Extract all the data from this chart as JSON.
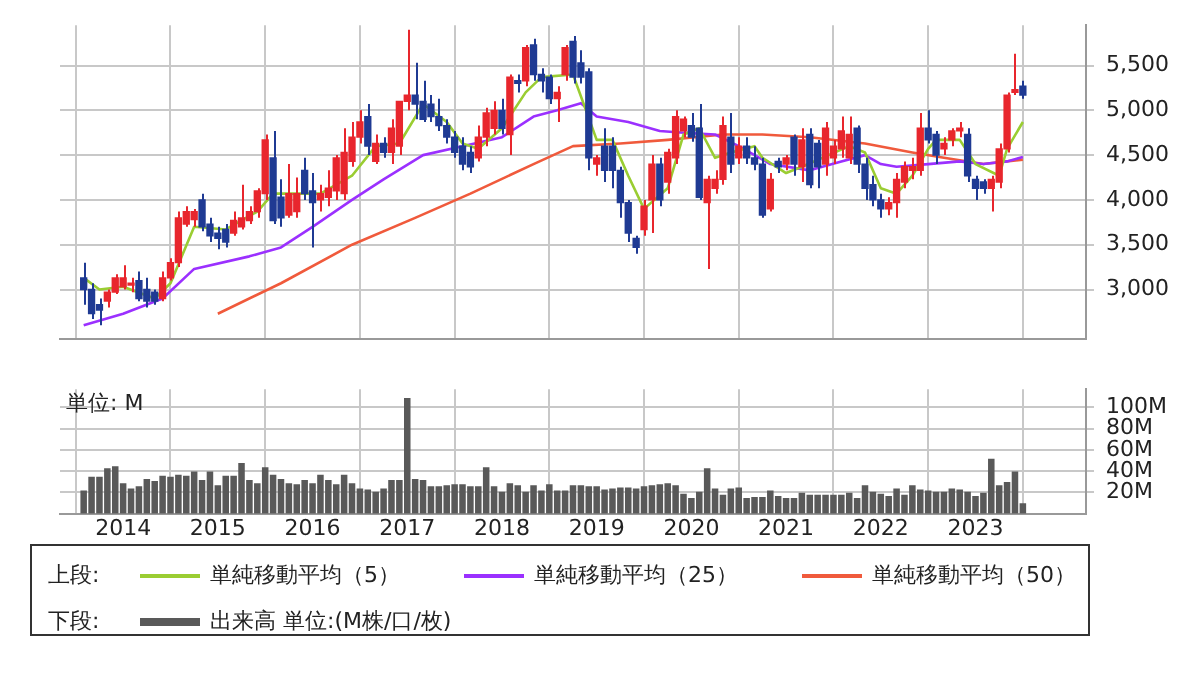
{
  "chart_data": [
    {
      "type": "candlestick",
      "legend_title": "上段:",
      "legend": "bottom",
      "grid": true,
      "tick_labels": "y",
      "marker": "none",
      "x": [
        "2013-08",
        "2013-09",
        "2013-10",
        "2013-11",
        "2013-12",
        "2014-01",
        "2014-02",
        "2014-03",
        "2014-04",
        "2014-05",
        "2014-06",
        "2014-07",
        "2014-08",
        "2014-09",
        "2014-10",
        "2014-11",
        "2014-12",
        "2015-01",
        "2015-02",
        "2015-03",
        "2015-04",
        "2015-05",
        "2015-06",
        "2015-07",
        "2015-08",
        "2015-09",
        "2015-10",
        "2015-11",
        "2015-12",
        "2016-01",
        "2016-02",
        "2016-03",
        "2016-04",
        "2016-05",
        "2016-06",
        "2016-07",
        "2016-08",
        "2016-09",
        "2016-10",
        "2016-11",
        "2016-12",
        "2017-01",
        "2017-02",
        "2017-03",
        "2017-04",
        "2017-05",
        "2017-06",
        "2017-07",
        "2017-08",
        "2017-09",
        "2017-10",
        "2017-11",
        "2017-12",
        "2018-01",
        "2018-02",
        "2018-03",
        "2018-04",
        "2018-05",
        "2018-06",
        "2018-07",
        "2018-08",
        "2018-09",
        "2018-10",
        "2018-11",
        "2018-12",
        "2019-01",
        "2019-02",
        "2019-03",
        "2019-04",
        "2019-05",
        "2019-06",
        "2019-07",
        "2019-08",
        "2019-09",
        "2019-10",
        "2019-11",
        "2019-12",
        "2020-01",
        "2020-02",
        "2020-03",
        "2020-04",
        "2020-05",
        "2020-06",
        "2020-07",
        "2020-08",
        "2020-09",
        "2020-10",
        "2020-11",
        "2020-12",
        "2021-01",
        "2021-02",
        "2021-03",
        "2021-04",
        "2021-05",
        "2021-06",
        "2021-07",
        "2021-08",
        "2021-09",
        "2021-10",
        "2021-11",
        "2021-12",
        "2022-01",
        "2022-02",
        "2022-03",
        "2022-04",
        "2022-05",
        "2022-06",
        "2022-07",
        "2022-08",
        "2022-09",
        "2022-10",
        "2022-11",
        "2022-12",
        "2023-01",
        "2023-02",
        "2023-03",
        "2023-04",
        "2023-05",
        "2023-06",
        "2023-07"
      ],
      "ohlc": [
        [
          3130,
          3300,
          2830,
          3000
        ],
        [
          3000,
          3070,
          2670,
          2730
        ],
        [
          2830,
          2900,
          2600,
          2770
        ],
        [
          2870,
          3000,
          2800,
          2970
        ],
        [
          2970,
          3170,
          2950,
          3130
        ],
        [
          3030,
          3270,
          3000,
          3130
        ],
        [
          3050,
          3130,
          2970,
          3070
        ],
        [
          3100,
          3200,
          2870,
          2900
        ],
        [
          3000,
          3130,
          2800,
          2870
        ],
        [
          2970,
          3000,
          2830,
          2870
        ],
        [
          2900,
          3200,
          2870,
          3130
        ],
        [
          3130,
          3350,
          3100,
          3300
        ],
        [
          3300,
          3870,
          3250,
          3800
        ],
        [
          3730,
          3930,
          3700,
          3870
        ],
        [
          3780,
          3900,
          3700,
          3870
        ],
        [
          4000,
          4070,
          3650,
          3700
        ],
        [
          3730,
          3800,
          3530,
          3600
        ],
        [
          3630,
          3700,
          3450,
          3570
        ],
        [
          3670,
          3730,
          3470,
          3530
        ],
        [
          3630,
          3870,
          3600,
          3770
        ],
        [
          3700,
          4170,
          3670,
          3800
        ],
        [
          3770,
          3930,
          3730,
          3870
        ],
        [
          3870,
          4130,
          3800,
          4100
        ],
        [
          4070,
          4730,
          4000,
          4670
        ],
        [
          4470,
          4770,
          3730,
          3770
        ],
        [
          4030,
          4230,
          3700,
          3800
        ],
        [
          3830,
          4400,
          3800,
          4070
        ],
        [
          3870,
          4250,
          3800,
          4070
        ],
        [
          4330,
          4470,
          4000,
          4070
        ],
        [
          4100,
          4300,
          3470,
          3970
        ],
        [
          4000,
          4170,
          3870,
          4070
        ],
        [
          4030,
          4330,
          3930,
          4130
        ],
        [
          4100,
          4500,
          4000,
          4470
        ],
        [
          4070,
          4800,
          4000,
          4530
        ],
        [
          4430,
          4870,
          4370,
          4700
        ],
        [
          4700,
          5000,
          4630,
          4870
        ],
        [
          4930,
          5070,
          4500,
          4600
        ],
        [
          4430,
          4730,
          4400,
          4630
        ],
        [
          4630,
          4700,
          4470,
          4530
        ],
        [
          4530,
          4900,
          4400,
          4800
        ],
        [
          4600,
          5100,
          4500,
          5100
        ],
        [
          5100,
          5900,
          5000,
          5170
        ],
        [
          5170,
          5530,
          4900,
          5070
        ],
        [
          5100,
          5330,
          4870,
          4900
        ],
        [
          5070,
          5170,
          4870,
          4930
        ],
        [
          4930,
          5130,
          4770,
          4830
        ],
        [
          4830,
          4900,
          4630,
          4700
        ],
        [
          4700,
          4770,
          4470,
          4530
        ],
        [
          4600,
          4700,
          4330,
          4400
        ],
        [
          4530,
          4600,
          4300,
          4370
        ],
        [
          4470,
          4830,
          4430,
          4700
        ],
        [
          4700,
          5030,
          4600,
          4970
        ],
        [
          4800,
          5100,
          4730,
          5000
        ],
        [
          5000,
          5130,
          4730,
          4800
        ],
        [
          4730,
          5400,
          4500,
          5370
        ],
        [
          5330,
          5400,
          5200,
          5300
        ],
        [
          5330,
          5730,
          5270,
          5700
        ],
        [
          5730,
          5800,
          5330,
          5400
        ],
        [
          5400,
          5470,
          5200,
          5330
        ],
        [
          5370,
          5400,
          5070,
          5130
        ],
        [
          5130,
          5270,
          4870,
          5200
        ],
        [
          5400,
          5730,
          5330,
          5700
        ],
        [
          5770,
          5830,
          5300,
          5370
        ],
        [
          5530,
          5670,
          5300,
          5370
        ],
        [
          5430,
          5470,
          4330,
          4470
        ],
        [
          4400,
          4500,
          4270,
          4470
        ],
        [
          4600,
          4800,
          4200,
          4330
        ],
        [
          4600,
          4700,
          4130,
          4330
        ],
        [
          4330,
          4370,
          3800,
          3970
        ],
        [
          3970,
          4000,
          3530,
          3630
        ],
        [
          3570,
          3600,
          3400,
          3470
        ],
        [
          3670,
          4000,
          3600,
          3930
        ],
        [
          4000,
          4500,
          3630,
          4400
        ],
        [
          4400,
          4470,
          3930,
          4000
        ],
        [
          4200,
          4570,
          4070,
          4530
        ],
        [
          4470,
          5000,
          4400,
          4930
        ],
        [
          4770,
          4930,
          4700,
          4900
        ],
        [
          4830,
          4970,
          4650,
          4700
        ],
        [
          4800,
          5070,
          4000,
          4030
        ],
        [
          3970,
          4270,
          3230,
          4230
        ],
        [
          4130,
          4330,
          4070,
          4230
        ],
        [
          4230,
          4930,
          4170,
          4830
        ],
        [
          4700,
          4970,
          4300,
          4400
        ],
        [
          4470,
          4700,
          4400,
          4600
        ],
        [
          4600,
          4700,
          4400,
          4470
        ],
        [
          4470,
          4600,
          4330,
          4400
        ],
        [
          4400,
          4470,
          3800,
          3830
        ],
        [
          3900,
          4300,
          3870,
          4230
        ],
        [
          4430,
          4470,
          4300,
          4370
        ],
        [
          4400,
          4500,
          4330,
          4470
        ],
        [
          4700,
          4730,
          4270,
          4400
        ],
        [
          4370,
          4800,
          4200,
          4670
        ],
        [
          4730,
          4800,
          4130,
          4170
        ],
        [
          4630,
          4670,
          4130,
          4370
        ],
        [
          4400,
          4870,
          4270,
          4800
        ],
        [
          4470,
          4670,
          4400,
          4600
        ],
        [
          4570,
          4930,
          4470,
          4770
        ],
        [
          4470,
          4930,
          4400,
          4730
        ],
        [
          4800,
          4830,
          4300,
          4400
        ],
        [
          4400,
          4470,
          4000,
          4130
        ],
        [
          4170,
          4270,
          3930,
          4000
        ],
        [
          4000,
          4070,
          3800,
          3900
        ],
        [
          3900,
          4030,
          3830,
          3970
        ],
        [
          3970,
          4300,
          3800,
          4230
        ],
        [
          4200,
          4430,
          4130,
          4370
        ],
        [
          4330,
          4470,
          4230,
          4370
        ],
        [
          4330,
          4970,
          4270,
          4800
        ],
        [
          4800,
          5000,
          4630,
          4670
        ],
        [
          4730,
          4770,
          4400,
          4500
        ],
        [
          4570,
          4700,
          4500,
          4630
        ],
        [
          4670,
          4800,
          4600,
          4770
        ],
        [
          4770,
          4870,
          4700,
          4800
        ],
        [
          4730,
          4800,
          4200,
          4270
        ],
        [
          4230,
          4270,
          4000,
          4130
        ],
        [
          4200,
          4230,
          4070,
          4130
        ],
        [
          4130,
          4270,
          3870,
          4230
        ],
        [
          4200,
          4630,
          4130,
          4570
        ],
        [
          4570,
          5200,
          4530,
          5170
        ],
        [
          5200,
          5630,
          5170,
          5230
        ],
        [
          5270,
          5330,
          5130,
          5170
        ]
      ],
      "colors": [
        "#1f3a93",
        "#1f3a93",
        "#1f3a93",
        "#e8262d",
        "#e8262d",
        "#e8262d",
        "#e8262d",
        "#1f3a93",
        "#1f3a93",
        "#1f3a93",
        "#e8262d",
        "#e8262d",
        "#e8262d",
        "#e8262d",
        "#e8262d",
        "#1f3a93",
        "#1f3a93",
        "#1f3a93",
        "#1f3a93",
        "#e8262d",
        "#e8262d",
        "#e8262d",
        "#e8262d",
        "#e8262d",
        "#1f3a93",
        "#1f3a93",
        "#e8262d",
        "#e8262d",
        "#1f3a93",
        "#1f3a93",
        "#e8262d",
        "#e8262d",
        "#e8262d",
        "#e8262d",
        "#e8262d",
        "#e8262d",
        "#1f3a93",
        "#e8262d",
        "#1f3a93",
        "#e8262d",
        "#e8262d",
        "#e8262d",
        "#1f3a93",
        "#1f3a93",
        "#1f3a93",
        "#1f3a93",
        "#1f3a93",
        "#1f3a93",
        "#1f3a93",
        "#1f3a93",
        "#e8262d",
        "#e8262d",
        "#e8262d",
        "#1f3a93",
        "#e8262d",
        "#1f3a93",
        "#e8262d",
        "#1f3a93",
        "#1f3a93",
        "#1f3a93",
        "#e8262d",
        "#e8262d",
        "#1f3a93",
        "#1f3a93",
        "#1f3a93",
        "#e8262d",
        "#1f3a93",
        "#1f3a93",
        "#1f3a93",
        "#1f3a93",
        "#1f3a93",
        "#e8262d",
        "#e8262d",
        "#1f3a93",
        "#e8262d",
        "#e8262d",
        "#e8262d",
        "#1f3a93",
        "#1f3a93",
        "#e8262d",
        "#e8262d",
        "#e8262d",
        "#1f3a93",
        "#e8262d",
        "#1f3a93",
        "#1f3a93",
        "#1f3a93",
        "#e8262d",
        "#1f3a93",
        "#e8262d",
        "#1f3a93",
        "#e8262d",
        "#1f3a93",
        "#1f3a93",
        "#e8262d",
        "#e8262d",
        "#e8262d",
        "#e8262d",
        "#1f3a93",
        "#1f3a93",
        "#1f3a93",
        "#1f3a93",
        "#e8262d",
        "#e8262d",
        "#e8262d",
        "#e8262d",
        "#e8262d",
        "#1f3a93",
        "#1f3a93",
        "#e8262d",
        "#e8262d",
        "#e8262d",
        "#1f3a93",
        "#1f3a93",
        "#1f3a93",
        "#e8262d",
        "#e8262d",
        "#e8262d",
        "#e8262d",
        "#1f3a93"
      ],
      "series": [
        {
          "name": "単純移動平均（5）",
          "type": "line",
          "color": "#9acd32",
          "x": [
            "2013-08",
            "2013-10",
            "2014-01",
            "2014-05",
            "2014-07",
            "2014-10",
            "2015-02",
            "2015-06",
            "2015-08",
            "2015-11",
            "2016-02",
            "2016-06",
            "2016-09",
            "2016-12",
            "2017-03",
            "2017-06",
            "2017-08",
            "2017-10",
            "2018-01",
            "2018-04",
            "2018-06",
            "2018-10",
            "2019-01",
            "2019-03",
            "2019-05",
            "2019-07",
            "2019-10",
            "2019-12",
            "2020-02",
            "2020-04",
            "2020-06",
            "2020-09",
            "2020-10",
            "2021-01",
            "2021-03",
            "2021-09",
            "2021-11",
            "2022-01",
            "2022-03",
            "2022-05",
            "2022-07",
            "2022-08",
            "2022-11",
            "2023-01",
            "2023-04",
            "2023-05",
            "2023-07"
          ],
          "values": [
            3130,
            3000,
            3030,
            2900,
            3070,
            3700,
            3670,
            3870,
            4070,
            4070,
            4070,
            4270,
            4600,
            4630,
            5070,
            4870,
            4630,
            4570,
            4800,
            5200,
            5370,
            5400,
            4670,
            4670,
            4270,
            3900,
            4130,
            4730,
            4800,
            4470,
            4530,
            4600,
            4470,
            4300,
            4370,
            4600,
            4530,
            4130,
            4070,
            4270,
            4570,
            4670,
            4670,
            4400,
            4270,
            4570,
            4870
          ]
        },
        {
          "name": "単純移動平均（25）",
          "type": "line",
          "color": "#9b30ff",
          "x": [
            "2013-08",
            "2014-01",
            "2014-06",
            "2014-10",
            "2015-05",
            "2015-09",
            "2016-01",
            "2016-06",
            "2016-10",
            "2017-03",
            "2017-08",
            "2018-01",
            "2018-05",
            "2018-08",
            "2018-11",
            "2019-01",
            "2019-05",
            "2019-09",
            "2019-12",
            "2020-04",
            "2020-07",
            "2020-11",
            "2021-04",
            "2021-08",
            "2021-11",
            "2022-01",
            "2022-03",
            "2022-07",
            "2022-11",
            "2023-02",
            "2023-05",
            "2023-07"
          ],
          "values": [
            2600,
            2730,
            2900,
            3230,
            3370,
            3470,
            3700,
            4000,
            4230,
            4500,
            4600,
            4700,
            4930,
            5000,
            5080,
            4930,
            4870,
            4770,
            4750,
            4730,
            4600,
            4400,
            4330,
            4430,
            4500,
            4400,
            4370,
            4400,
            4430,
            4400,
            4430,
            4480
          ]
        },
        {
          "name": "単純移動平均（50）",
          "type": "line",
          "color": "#f05a3c",
          "x": [
            "2015-01",
            "2015-09",
            "2016-06",
            "2017-02",
            "2017-09",
            "2018-05",
            "2018-10",
            "2019-04",
            "2019-10",
            "2020-05",
            "2020-10",
            "2021-04",
            "2021-11",
            "2022-05",
            "2022-09",
            "2023-02",
            "2023-07"
          ],
          "values": [
            2730,
            3070,
            3500,
            3800,
            4070,
            4400,
            4600,
            4630,
            4670,
            4730,
            4730,
            4700,
            4630,
            4530,
            4470,
            4400,
            4450
          ]
        }
      ],
      "xlim": [
        "2013-05",
        "2024-03"
      ],
      "xticks": [
        "2014",
        "2015",
        "2016",
        "2017",
        "2018",
        "2019",
        "2020",
        "2021",
        "2022",
        "2023"
      ],
      "ylim": [
        2450,
        5950
      ],
      "yticks": [
        {
          "value": 3000,
          "label": "3,000"
        },
        {
          "value": 3500,
          "label": "3,500"
        },
        {
          "value": 4000,
          "label": "4,000"
        },
        {
          "value": 4500,
          "label": "4,500"
        },
        {
          "value": 5000,
          "label": "5,000"
        },
        {
          "value": 5500,
          "label": "5,500"
        }
      ]
    },
    {
      "type": "bar",
      "ylabel": "単位: M",
      "legend_title": "下段:",
      "legend": "bottom",
      "grid": true,
      "x": [
        "2013-08",
        "2013-09",
        "2013-10",
        "2013-11",
        "2013-12",
        "2014-01",
        "2014-02",
        "2014-03",
        "2014-04",
        "2014-05",
        "2014-06",
        "2014-07",
        "2014-08",
        "2014-09",
        "2014-10",
        "2014-11",
        "2014-12",
        "2015-01",
        "2015-02",
        "2015-03",
        "2015-04",
        "2015-05",
        "2015-06",
        "2015-07",
        "2015-08",
        "2015-09",
        "2015-10",
        "2015-11",
        "2015-12",
        "2016-01",
        "2016-02",
        "2016-03",
        "2016-04",
        "2016-05",
        "2016-06",
        "2016-07",
        "2016-08",
        "2016-09",
        "2016-10",
        "2016-11",
        "2016-12",
        "2017-01",
        "2017-02",
        "2017-03",
        "2017-04",
        "2017-05",
        "2017-06",
        "2017-07",
        "2017-08",
        "2017-09",
        "2017-10",
        "2017-11",
        "2017-12",
        "2018-01",
        "2018-02",
        "2018-03",
        "2018-04",
        "2018-05",
        "2018-06",
        "2018-07",
        "2018-08",
        "2018-09",
        "2018-10",
        "2018-11",
        "2018-12",
        "2019-01",
        "2019-02",
        "2019-03",
        "2019-04",
        "2019-05",
        "2019-06",
        "2019-07",
        "2019-08",
        "2019-09",
        "2019-10",
        "2019-11",
        "2019-12",
        "2020-01",
        "2020-02",
        "2020-03",
        "2020-04",
        "2020-05",
        "2020-06",
        "2020-07",
        "2020-08",
        "2020-09",
        "2020-10",
        "2020-11",
        "2020-12",
        "2021-01",
        "2021-02",
        "2021-03",
        "2021-04",
        "2021-05",
        "2021-06",
        "2021-07",
        "2021-08",
        "2021-09",
        "2021-10",
        "2021-11",
        "2021-12",
        "2022-01",
        "2022-02",
        "2022-03",
        "2022-04",
        "2022-05",
        "2022-06",
        "2022-07",
        "2022-08",
        "2022-09",
        "2022-10",
        "2022-11",
        "2022-12",
        "2023-01",
        "2023-02",
        "2023-03",
        "2023-04",
        "2023-05",
        "2023-06",
        "2023-07"
      ],
      "series": [
        {
          "name": "出来高 単位:(M株/口/枚)",
          "color": "#595959",
          "values": [
            21,
            34,
            34,
            42,
            44,
            28,
            23,
            25,
            32,
            30,
            35,
            34,
            36,
            35,
            39,
            31,
            39,
            26,
            35,
            35,
            47,
            31,
            28,
            43,
            36,
            32,
            28,
            27,
            31,
            28,
            36,
            31,
            27,
            36,
            28,
            23,
            22,
            20,
            23,
            31,
            31,
            108,
            32,
            31,
            25,
            25,
            26,
            27,
            27,
            25,
            25,
            43,
            25,
            20,
            28,
            26,
            20,
            26,
            21,
            27,
            21,
            21,
            26,
            26,
            25,
            25,
            22,
            23,
            24,
            24,
            23,
            25,
            26,
            27,
            28,
            26,
            18,
            14,
            20,
            42,
            23,
            17,
            23,
            24,
            14,
            15,
            15,
            21,
            16,
            14,
            14,
            19,
            17,
            17,
            17,
            17,
            17,
            19,
            14,
            26,
            20,
            18,
            16,
            23,
            17,
            26,
            22,
            21,
            20,
            20,
            23,
            22,
            20,
            16,
            19,
            51,
            26,
            29,
            39,
            9
          ]
        }
      ],
      "xlim": [
        "2013-05",
        "2024-03"
      ],
      "xticks": [
        "2014",
        "2015",
        "2016",
        "2017",
        "2018",
        "2019",
        "2020",
        "2021",
        "2022",
        "2023"
      ],
      "ylim": [
        0,
        117
      ],
      "yticks": [
        {
          "value": 20,
          "label": "20M"
        },
        {
          "value": 40,
          "label": "40M"
        },
        {
          "value": 60,
          "label": "60M"
        },
        {
          "value": 80,
          "label": "80M"
        },
        {
          "value": 100,
          "label": "100M"
        }
      ]
    }
  ]
}
